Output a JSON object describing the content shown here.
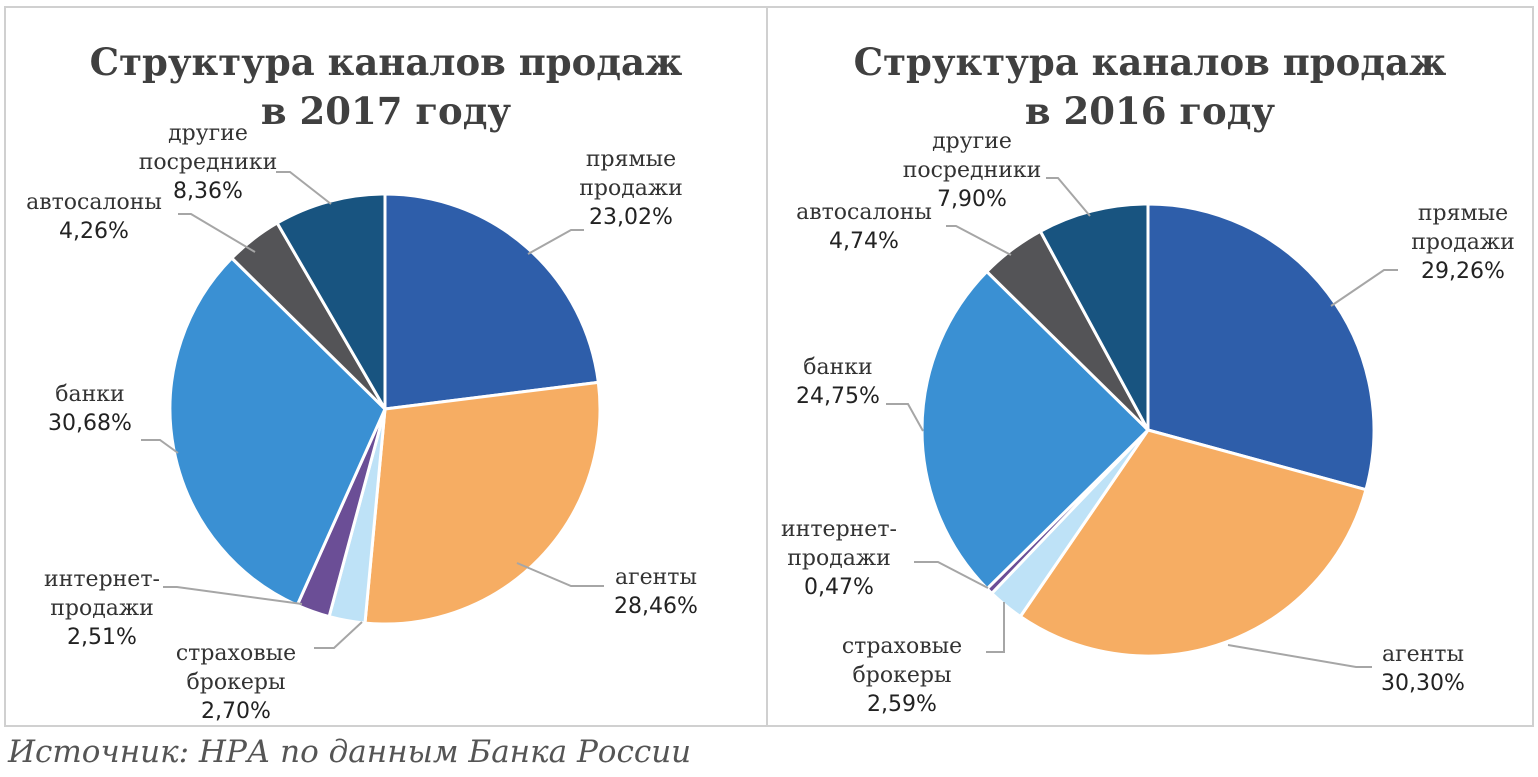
{
  "source": "Источник: НРА по данным Банка России",
  "chart_data": [
    {
      "type": "pie",
      "title_line1": "Структура каналов продаж",
      "title_line2": "в 2017 году",
      "slices": [
        {
          "label_lines": [
            "прямые",
            "продажи"
          ],
          "pct_text": "23,02%",
          "value": 23.02,
          "color": "#2E5EAA"
        },
        {
          "label_lines": [
            "агенты"
          ],
          "pct_text": "28,46%",
          "value": 28.46,
          "color": "#F6AD63"
        },
        {
          "label_lines": [
            "страховые",
            "брокеры"
          ],
          "pct_text": "2,70%",
          "value": 2.7,
          "color": "#BEE2F7"
        },
        {
          "label_lines": [
            "интернет-",
            "продажи"
          ],
          "pct_text": "2,51%",
          "value": 2.51,
          "color": "#6B4E96"
        },
        {
          "label_lines": [
            "банки"
          ],
          "pct_text": "30,68%",
          "value": 30.68,
          "color": "#3A90D3"
        },
        {
          "label_lines": [
            "автосалоны"
          ],
          "pct_text": "4,26%",
          "value": 4.26,
          "color": "#545457"
        },
        {
          "label_lines": [
            "другие",
            "посредники"
          ],
          "pct_text": "8,36%",
          "value": 8.36,
          "color": "#185480"
        }
      ]
    },
    {
      "type": "pie",
      "title_line1": "Структура каналов продаж",
      "title_line2": "в 2016 году",
      "slices": [
        {
          "label_lines": [
            "прямые",
            "продажи"
          ],
          "pct_text": "29,26%",
          "value": 29.26,
          "color": "#2E5EAA"
        },
        {
          "label_lines": [
            "агенты"
          ],
          "pct_text": "30,30%",
          "value": 30.3,
          "color": "#F6AD63"
        },
        {
          "label_lines": [
            "страховые",
            "брокеры"
          ],
          "pct_text": "2,59%",
          "value": 2.59,
          "color": "#BEE2F7"
        },
        {
          "label_lines": [
            "интернет-",
            "продажи"
          ],
          "pct_text": "0,47%",
          "value": 0.47,
          "color": "#6B4E96"
        },
        {
          "label_lines": [
            "банки"
          ],
          "pct_text": "24,75%",
          "value": 24.75,
          "color": "#3A90D3"
        },
        {
          "label_lines": [
            "автосалоны"
          ],
          "pct_text": "4,74%",
          "value": 4.74,
          "color": "#545457"
        },
        {
          "label_lines": [
            "другие",
            "посредники"
          ],
          "pct_text": "7,90%",
          "value": 7.9,
          "color": "#185480"
        }
      ]
    }
  ]
}
